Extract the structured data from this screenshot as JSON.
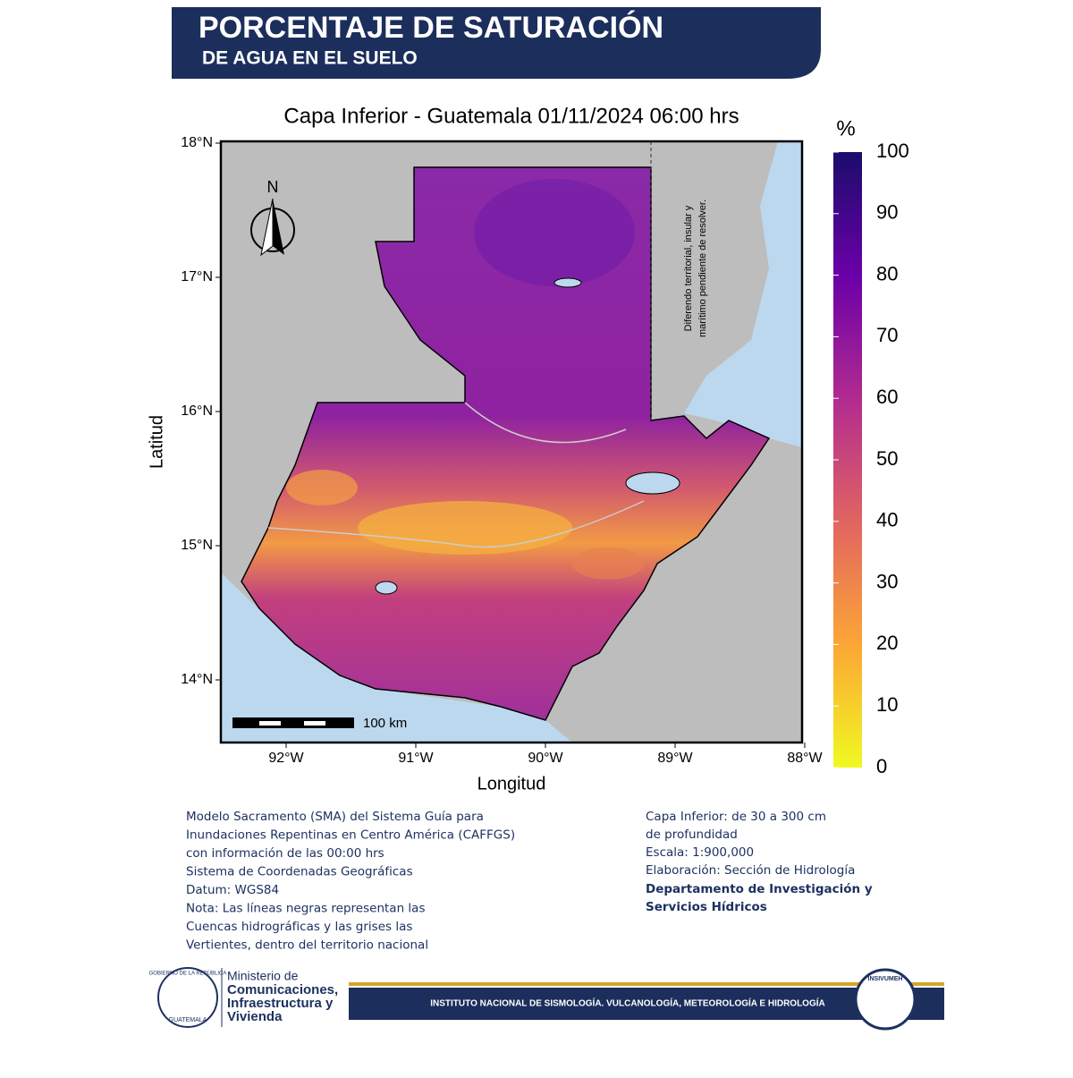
{
  "header": {
    "title": "PORCENTAJE DE SATURACIÓN",
    "subtitle": "DE AGUA EN EL SUELO"
  },
  "map": {
    "title": "Capa Inferior - Guatemala 01/11/2024 06:00 hrs",
    "xlabel": "Longitud",
    "ylabel": "Latitud",
    "lat_labels": [
      "18°N",
      "17°N",
      "16°N",
      "15°N",
      "14°N"
    ],
    "lon_labels": [
      "92°W",
      "91°W",
      "90°W",
      "89°W",
      "88°W"
    ],
    "north": "N",
    "scale": "100 km",
    "dispute_note": [
      "Diferendo territorial, insular y",
      "marítimo pendiente de resolver."
    ]
  },
  "colorbar": {
    "unit": "%",
    "ticks": [
      0,
      10,
      20,
      30,
      40,
      50,
      60,
      70,
      80,
      90,
      100
    ],
    "lim": [
      0,
      100
    ]
  },
  "notes": {
    "left": [
      "Modelo Sacramento (SMA) del Sistema Guía para",
      "Inundaciones Repentinas en Centro América (CAFFGS)",
      "con información de las 00:00 hrs",
      "Sistema de Coordenadas Geográficas",
      "Datum: WGS84",
      "Nota: Las líneas negras representan las",
      "Cuencas hidrográficas y las grises las",
      "Vertientes, dentro del territorio nacional"
    ],
    "right": [
      "Capa Inferior: de 30 a 300 cm",
      "de profundidad",
      "Escala: 1:900,000",
      "Elaboración: Sección de Hidrología"
    ],
    "right_bold": [
      "Departamento de Investigación y",
      "Servicios Hídricos"
    ]
  },
  "footer": {
    "ministry": [
      "Ministerio de",
      "Comunicaciones,",
      "Infraestructura y",
      "Vivienda"
    ],
    "seal": [
      "GOBIERNO DE LA REPÚBLICA",
      "GUATEMALA"
    ],
    "insivumeh": "INSIVUMEH",
    "institute": "INSTITUTO NACIONAL DE SISMOLOGÍA. VULCANOLOGÍA, METEOROLOGÍA E HIDROLOGÍA"
  }
}
